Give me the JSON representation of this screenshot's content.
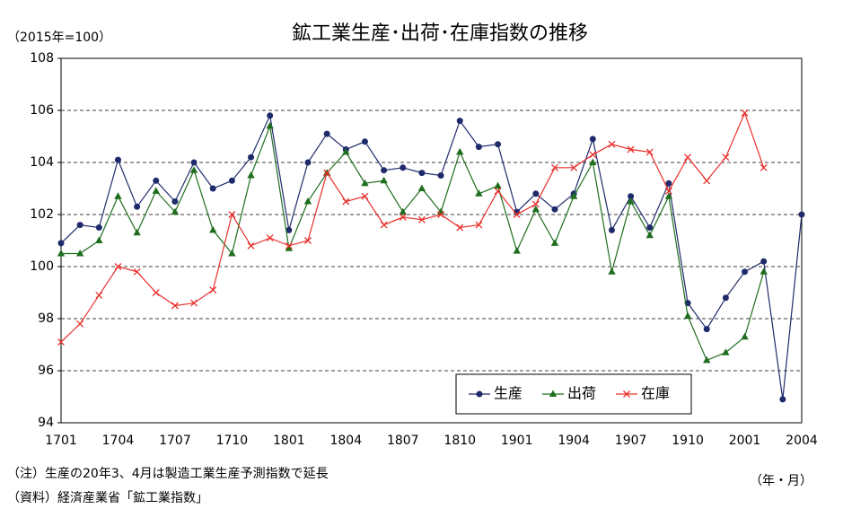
{
  "chart_data": {
    "type": "line",
    "title": "鉱工業生産･出荷･在庫指数の推移",
    "subtitle": "（2015年=100）",
    "x_label": "（年・月）",
    "notes": [
      "（注）生産の20年3、4月は製造工業生産予測指数で延長",
      "（資料）経済産業省「鉱工業指数」"
    ],
    "categories": [
      "1701",
      null,
      null,
      "1704",
      null,
      null,
      "1707",
      null,
      null,
      "1710",
      null,
      null,
      "1801",
      null,
      null,
      "1804",
      null,
      null,
      "1807",
      null,
      null,
      "1810",
      null,
      null,
      "1901",
      null,
      null,
      "1904",
      null,
      null,
      "1907",
      null,
      null,
      "1910",
      null,
      null,
      "2001",
      null,
      null,
      "2004"
    ],
    "series": [
      {
        "name": "生産",
        "color": "#1f2a6b",
        "marker": "circle",
        "values": [
          100.9,
          101.6,
          101.5,
          104.1,
          102.3,
          103.3,
          102.5,
          104.0,
          103.0,
          103.3,
          104.2,
          105.8,
          101.4,
          104.0,
          105.1,
          104.5,
          104.8,
          103.7,
          103.8,
          103.6,
          103.5,
          105.6,
          104.6,
          104.7,
          102.1,
          102.8,
          102.2,
          102.8,
          104.9,
          101.4,
          102.7,
          101.5,
          103.2,
          98.6,
          97.6,
          98.8,
          99.8,
          100.2,
          94.9,
          102.0
        ]
      },
      {
        "name": "出荷",
        "color": "#1e6e1e",
        "marker": "triangle",
        "values": [
          100.5,
          100.5,
          101.0,
          102.7,
          101.3,
          102.9,
          102.1,
          103.7,
          101.4,
          100.5,
          103.5,
          105.4,
          100.7,
          102.5,
          103.6,
          104.4,
          103.2,
          103.3,
          102.1,
          103.0,
          102.1,
          104.4,
          102.8,
          103.1,
          100.6,
          102.2,
          100.9,
          102.7,
          104.0,
          99.8,
          102.5,
          101.2,
          102.7,
          98.1,
          96.4,
          96.7,
          97.3,
          99.8,
          null,
          null
        ]
      },
      {
        "name": "在庫",
        "color": "#e8302c",
        "marker": "cross",
        "values": [
          97.1,
          97.8,
          98.9,
          100.0,
          99.8,
          99.0,
          98.5,
          98.6,
          99.1,
          102.0,
          100.8,
          101.1,
          100.8,
          101.0,
          103.6,
          102.5,
          102.7,
          101.6,
          101.9,
          101.8,
          102.0,
          101.5,
          101.6,
          102.9,
          102.0,
          102.4,
          103.8,
          103.8,
          104.3,
          104.7,
          104.5,
          104.4,
          102.9,
          104.2,
          103.3,
          104.2,
          105.9,
          103.8,
          null,
          null
        ]
      }
    ],
    "ylim": [
      94,
      108
    ],
    "yticks": [
      94,
      96,
      98,
      100,
      102,
      104,
      106,
      108
    ],
    "grid": true,
    "legend": "lower right"
  }
}
